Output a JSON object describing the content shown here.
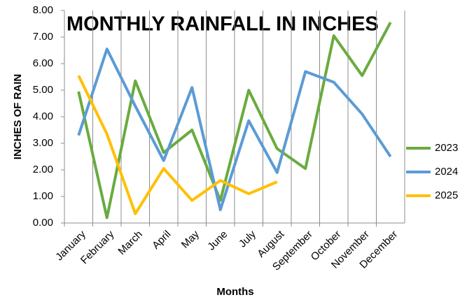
{
  "chart_data": {
    "type": "line",
    "title": "MONTHLY RAINFALL IN INCHES",
    "x_label": "Months",
    "y_label": "INCHES OF RAIN",
    "categories": [
      "January",
      "February",
      "March",
      "April",
      "May",
      "June",
      "July",
      "August",
      "September",
      "October",
      "November",
      "December"
    ],
    "series": [
      {
        "name": "2023",
        "color": "#6aab3f",
        "values": [
          4.95,
          0.2,
          5.35,
          2.65,
          3.5,
          0.85,
          5.0,
          2.8,
          2.05,
          7.05,
          5.55,
          7.55
        ]
      },
      {
        "name": "2024",
        "color": "#5b9bd5",
        "values": [
          3.3,
          6.55,
          4.4,
          2.35,
          5.1,
          0.5,
          3.85,
          1.9,
          5.7,
          5.3,
          4.1,
          2.5
        ]
      },
      {
        "name": "2025",
        "color": "#ffc000",
        "values": [
          5.55,
          3.35,
          0.35,
          2.05,
          0.85,
          1.6,
          1.1,
          1.55,
          null,
          null,
          null,
          null
        ]
      }
    ],
    "ylim": [
      0,
      8
    ],
    "yticks": [
      {
        "value": 0,
        "label": "0.00"
      },
      {
        "value": 1,
        "label": "1.00"
      },
      {
        "value": 2,
        "label": "2.00"
      },
      {
        "value": 3,
        "label": "3.00"
      },
      {
        "value": 4,
        "label": "4.00"
      },
      {
        "value": 5,
        "label": "5.00"
      },
      {
        "value": 6,
        "label": "6.00"
      },
      {
        "value": 7,
        "label": "7.00"
      },
      {
        "value": 8,
        "label": "8.00"
      }
    ],
    "grid": "vertical",
    "legend": "right"
  }
}
